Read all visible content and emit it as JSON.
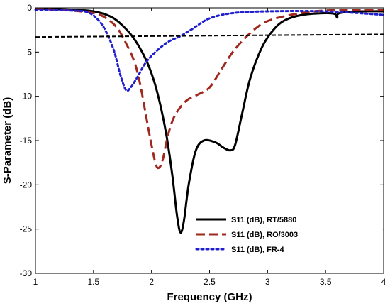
{
  "chart_data": {
    "type": "line",
    "title": "",
    "xlabel": "Frequency (GHz)",
    "ylabel": "S-Parameter (dB)",
    "xlim": [
      1,
      4
    ],
    "ylim": [
      -30,
      0
    ],
    "x_ticks": [
      "1",
      "1.5",
      "2",
      "2.5",
      "3",
      "3.5",
      "4"
    ],
    "y_ticks": [
      "0",
      "-5",
      "-10",
      "-15",
      "-20",
      "-25",
      "-30"
    ],
    "legend_position": "bottom-right",
    "grid": false,
    "series": [
      {
        "name": "S11 (dB), RT/5880",
        "color": "#000000",
        "style": "solid",
        "x": [
          1.0,
          1.3,
          1.5,
          1.65,
          1.75,
          1.85,
          1.95,
          2.02,
          2.08,
          2.13,
          2.18,
          2.22,
          2.25,
          2.28,
          2.32,
          2.38,
          2.45,
          2.55,
          2.62,
          2.68,
          2.72,
          2.78,
          2.85,
          2.95,
          3.05,
          3.15,
          3.3,
          3.5,
          3.58,
          3.6,
          3.62,
          3.8,
          4.0
        ],
        "y": [
          -0.1,
          -0.2,
          -0.4,
          -1.0,
          -2.0,
          -3.5,
          -5.8,
          -8.2,
          -11.2,
          -14.5,
          -19.0,
          -23.5,
          -25.4,
          -24.0,
          -20.0,
          -16.2,
          -15.0,
          -15.2,
          -15.8,
          -16.1,
          -15.5,
          -12.0,
          -8.0,
          -4.5,
          -2.5,
          -1.4,
          -0.8,
          -0.6,
          -0.7,
          -1.1,
          -0.6,
          -0.4,
          -0.4
        ]
      },
      {
        "name": "S11 (dB), RO/3003",
        "color": "#a0281e",
        "style": "dashed",
        "x": [
          1.0,
          1.3,
          1.5,
          1.6,
          1.7,
          1.78,
          1.85,
          1.9,
          1.95,
          2.0,
          2.04,
          2.07,
          2.1,
          2.14,
          2.2,
          2.3,
          2.4,
          2.5,
          2.6,
          2.7,
          2.8,
          2.9,
          3.0,
          3.2,
          3.5,
          4.0
        ],
        "y": [
          -0.1,
          -0.3,
          -0.6,
          -1.1,
          -2.2,
          -4.0,
          -6.0,
          -8.5,
          -12.0,
          -15.5,
          -17.8,
          -18.0,
          -17.0,
          -14.5,
          -12.2,
          -10.5,
          -9.8,
          -9.0,
          -7.0,
          -5.0,
          -3.5,
          -2.3,
          -1.5,
          -0.8,
          -0.3,
          -0.2
        ]
      },
      {
        "name": "S11 (dB), FR-4",
        "color": "#1f1fd0",
        "style": "dotted",
        "x": [
          1.0,
          1.3,
          1.45,
          1.55,
          1.62,
          1.68,
          1.73,
          1.78,
          1.82,
          1.88,
          1.95,
          2.05,
          2.15,
          2.25,
          2.35,
          2.5,
          2.7,
          3.0,
          3.5,
          4.0
        ],
        "y": [
          -0.2,
          -0.3,
          -0.5,
          -1.5,
          -3.0,
          -5.0,
          -7.5,
          -9.3,
          -9.0,
          -7.8,
          -6.2,
          -4.8,
          -3.8,
          -3.2,
          -2.4,
          -1.2,
          -0.6,
          -0.4,
          -0.4,
          -0.8
        ]
      },
      {
        "name": "",
        "color": "#000000",
        "style": "dashed",
        "x": [
          1.0,
          4.0
        ],
        "y": [
          -3.3,
          -3.0
        ]
      }
    ],
    "legend": [
      {
        "label": "S11 (dB), RT/5880",
        "color": "#000000",
        "style": "solid"
      },
      {
        "label": "S11 (dB), RO/3003",
        "color": "#a0281e",
        "style": "dashed"
      },
      {
        "label": "S11 (dB), FR-4",
        "color": "#1f1fd0",
        "style": "dotted"
      }
    ]
  }
}
